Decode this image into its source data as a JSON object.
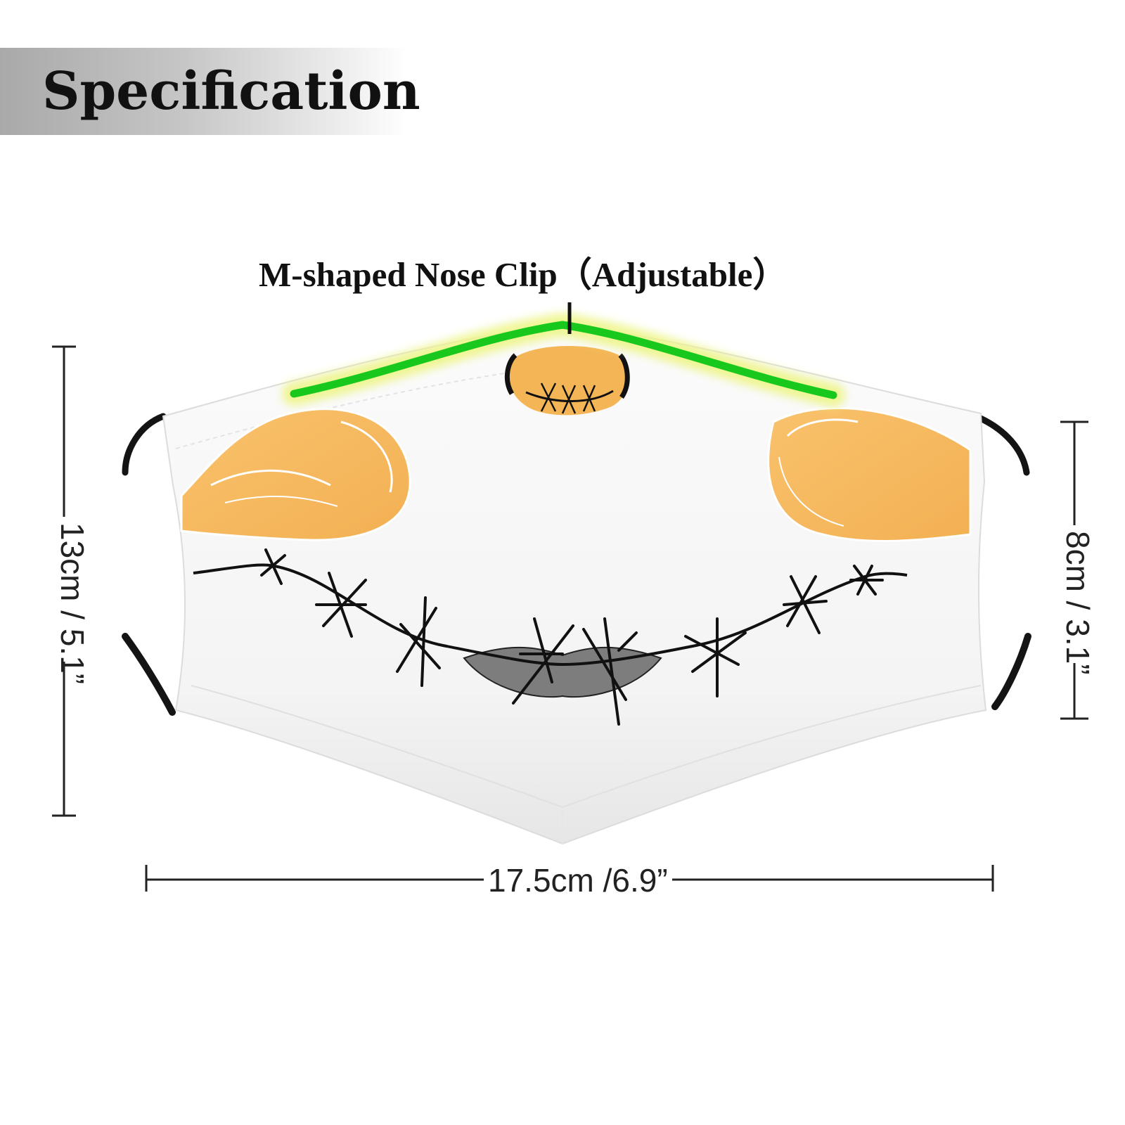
{
  "header": {
    "title": "Specification"
  },
  "callout": {
    "nose_clip_label": "M-shaped Nose Clip（Adjustable）"
  },
  "dimensions": {
    "height_label": "13cm / 5.1”",
    "depth_label": "8cm / 3.1”",
    "width_label": "17.5cm /6.9”"
  },
  "colors": {
    "mask_fabric": "#f6f6f6",
    "nose_clip": "#19c81c",
    "nose_clip_glow": "#eef58a",
    "cheek": "#f8bd62",
    "stitch": "#111111",
    "lips": "#7d7d7d",
    "ear_loop": "#141414"
  },
  "icons": {
    "mouth": "stitched-smile-icon",
    "nose": "stitched-nose-icon"
  }
}
